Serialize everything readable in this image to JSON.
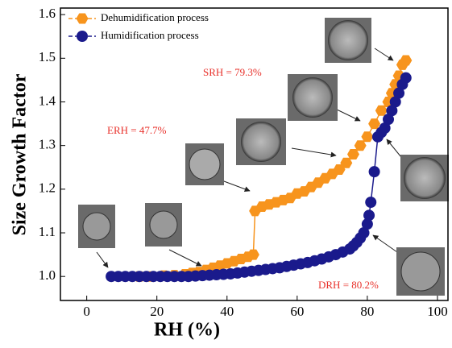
{
  "chart_data": {
    "type": "line",
    "xlabel": "RH (%)",
    "ylabel": "Size Growth Factor",
    "xlim": [
      -7.5,
      103
    ],
    "ylim": [
      0.945,
      1.615
    ],
    "xticks": [
      0,
      20,
      40,
      60,
      80,
      100
    ],
    "yticks": [
      {
        "value": 1,
        "label": "1.0"
      },
      1.1,
      1.2,
      1.3,
      1.4,
      1.5,
      1.6
    ],
    "legend": "upper left",
    "annotations": [
      "SRH = 79.3%",
      "ERH = 47.7%",
      "DRH = 80.2%"
    ],
    "series": [
      {
        "name": "Dehumidification process",
        "color": "#f7941d",
        "marker": "hexagon",
        "x": [
          15,
          18,
          22,
          25,
          28,
          30,
          32,
          34,
          36,
          38,
          40,
          42,
          44,
          46,
          47.5,
          48,
          50,
          52,
          54,
          56,
          58,
          60,
          62,
          64,
          66,
          68,
          70,
          72,
          74,
          76,
          78,
          80,
          82,
          84,
          86,
          87,
          88,
          89,
          90,
          91
        ],
        "values": [
          1.0,
          1.0,
          1.002,
          1.003,
          1.005,
          1.008,
          1.01,
          1.015,
          1.02,
          1.025,
          1.03,
          1.035,
          1.04,
          1.045,
          1.05,
          1.15,
          1.16,
          1.165,
          1.17,
          1.175,
          1.18,
          1.19,
          1.195,
          1.205,
          1.215,
          1.225,
          1.235,
          1.245,
          1.26,
          1.28,
          1.3,
          1.32,
          1.35,
          1.38,
          1.4,
          1.42,
          1.44,
          1.46,
          1.485,
          1.495
        ]
      },
      {
        "name": "Humidification process",
        "color": "#1a1a8c",
        "marker": "circle",
        "x": [
          7,
          9,
          11,
          13,
          15,
          17,
          19,
          21,
          23,
          25,
          27,
          29,
          31,
          33,
          35,
          37,
          39,
          41,
          43,
          45,
          47,
          49,
          51,
          53,
          55,
          57,
          59,
          61,
          63,
          65,
          67,
          69,
          71,
          73,
          75,
          76,
          77,
          78,
          79,
          80,
          80.5,
          81,
          82,
          83,
          84,
          85,
          86,
          87,
          88,
          89,
          90,
          91
        ],
        "values": [
          1.0,
          1.0,
          1.0,
          1.0,
          1.0,
          1.0,
          1.0,
          1.0,
          1.0,
          1.0,
          1.0,
          1.0,
          1.001,
          1.002,
          1.003,
          1.004,
          1.005,
          1.006,
          1.008,
          1.01,
          1.012,
          1.014,
          1.016,
          1.018,
          1.02,
          1.023,
          1.026,
          1.029,
          1.032,
          1.036,
          1.04,
          1.045,
          1.05,
          1.056,
          1.063,
          1.07,
          1.078,
          1.088,
          1.1,
          1.12,
          1.14,
          1.17,
          1.24,
          1.32,
          1.33,
          1.34,
          1.36,
          1.38,
          1.4,
          1.42,
          1.44,
          1.455
        ]
      }
    ]
  }
}
